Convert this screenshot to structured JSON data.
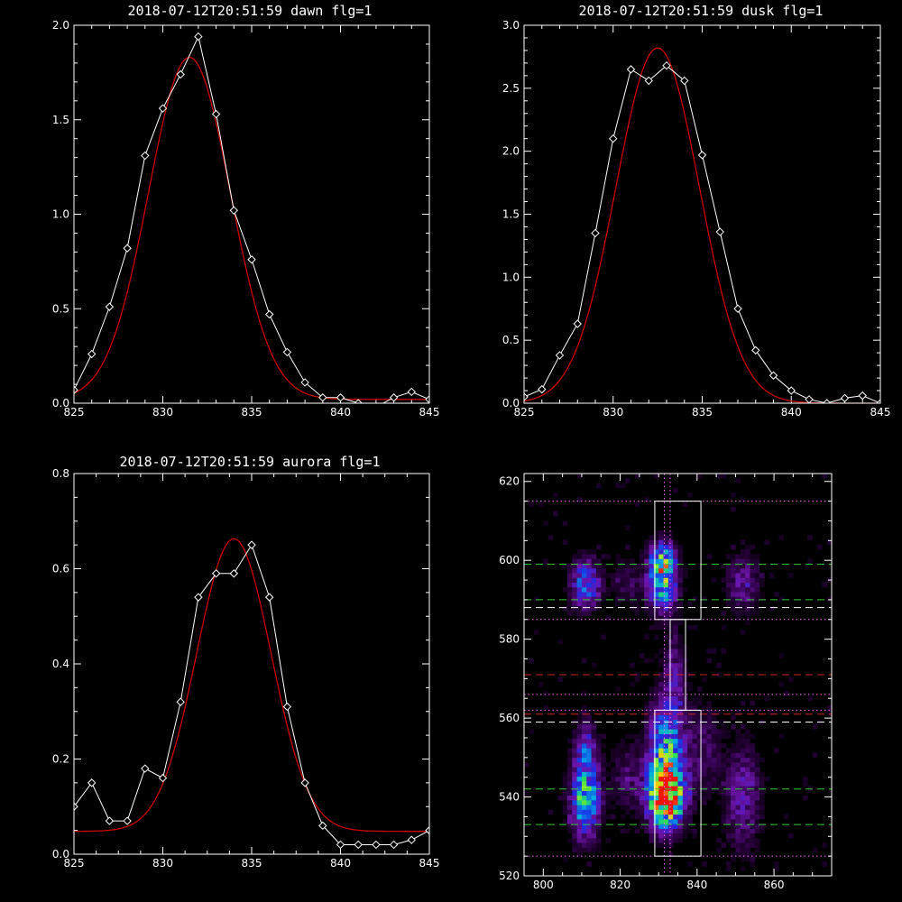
{
  "colors": {
    "background": "#000000",
    "axes": "#ffffff",
    "data_line": "#ffffff",
    "fit_line": "#cc0000",
    "box": "#ffffff",
    "center_line": "#ff66ff",
    "green_line": "#33cc33",
    "red_line": "#cc2222",
    "white_dash": "#ffffff"
  },
  "chart_data": [
    {
      "id": "dawn",
      "type": "line",
      "title": "2018-07-12T20:51:59 dawn flg=1",
      "xlim": [
        825,
        845
      ],
      "ylim": [
        0,
        2.0
      ],
      "xticks": [
        825,
        830,
        835,
        840,
        845
      ],
      "yticks": [
        0.0,
        0.5,
        1.0,
        1.5,
        2.0
      ],
      "xtick_labels": [
        "825",
        "830",
        "835",
        "840",
        "845"
      ],
      "ytick_labels": [
        "0.0",
        "0.5",
        "1.0",
        "1.5",
        "2.0"
      ],
      "series": [
        {
          "style": "data-diamonds",
          "x": [
            825,
            826,
            827,
            828,
            829,
            830,
            831,
            832,
            833,
            834,
            835,
            836,
            837,
            838,
            839,
            840,
            841,
            842,
            843,
            844,
            845
          ],
          "y": [
            0.07,
            0.26,
            0.51,
            0.82,
            1.31,
            1.56,
            1.74,
            1.94,
            1.53,
            1.02,
            0.76,
            0.47,
            0.27,
            0.11,
            0.03,
            0.03,
            0.0,
            -0.02,
            0.03,
            0.06,
            0.02
          ]
        },
        {
          "style": "fit",
          "gaussian": {
            "amplitude": 1.81,
            "center": 831.5,
            "sigma": 2.3,
            "offset": 0.02
          }
        }
      ]
    },
    {
      "id": "dusk",
      "type": "line",
      "title": "2018-07-12T20:51:59 dusk flg=1",
      "xlim": [
        825,
        845
      ],
      "ylim": [
        0,
        3.0
      ],
      "xticks": [
        825,
        830,
        835,
        840,
        845
      ],
      "yticks": [
        0.0,
        0.5,
        1.0,
        1.5,
        2.0,
        2.5,
        3.0
      ],
      "xtick_labels": [
        "825",
        "830",
        "835",
        "840",
        "845"
      ],
      "ytick_labels": [
        "0.0",
        "0.5",
        "1.0",
        "1.5",
        "2.0",
        "2.5",
        "3.0"
      ],
      "series": [
        {
          "style": "data-diamonds",
          "x": [
            825,
            826,
            827,
            828,
            829,
            830,
            831,
            832,
            833,
            834,
            835,
            836,
            837,
            838,
            839,
            840,
            841,
            842,
            843,
            844,
            845
          ],
          "y": [
            0.05,
            0.11,
            0.38,
            0.63,
            1.35,
            2.1,
            2.65,
            2.56,
            2.68,
            2.56,
            1.97,
            1.36,
            0.75,
            0.42,
            0.22,
            0.1,
            0.03,
            0.0,
            0.04,
            0.06,
            0.0
          ]
        },
        {
          "style": "fit",
          "gaussian": {
            "amplitude": 2.82,
            "center": 832.5,
            "sigma": 2.35,
            "offset": 0.0
          }
        }
      ]
    },
    {
      "id": "aurora",
      "type": "line",
      "title": "2018-07-12T20:51:59 aurora flg=1",
      "xlim": [
        825,
        845
      ],
      "ylim": [
        0,
        0.8
      ],
      "xticks": [
        825,
        830,
        835,
        840,
        845
      ],
      "yticks": [
        0.0,
        0.2,
        0.4,
        0.6,
        0.8
      ],
      "xtick_labels": [
        "825",
        "830",
        "835",
        "840",
        "845"
      ],
      "ytick_labels": [
        "0.0",
        "0.2",
        "0.4",
        "0.6",
        "0.8"
      ],
      "series": [
        {
          "style": "data-diamonds",
          "x": [
            825,
            826,
            827,
            828,
            829,
            830,
            831,
            832,
            833,
            834,
            835,
            836,
            837,
            838,
            839,
            840,
            841,
            842,
            843,
            844,
            845
          ],
          "y": [
            0.1,
            0.15,
            0.07,
            0.07,
            0.18,
            0.16,
            0.32,
            0.54,
            0.59,
            0.59,
            0.65,
            0.54,
            0.31,
            0.15,
            0.06,
            0.02,
            0.02,
            0.02,
            0.02,
            0.03,
            0.05
          ]
        },
        {
          "style": "fit",
          "gaussian": {
            "amplitude": 0.615,
            "center": 834.0,
            "sigma": 2.1,
            "offset": 0.048
          }
        }
      ]
    },
    {
      "id": "image",
      "type": "heatmap",
      "title": "",
      "xlim": [
        795,
        875
      ],
      "ylim": [
        520,
        622
      ],
      "xticks": [
        800,
        820,
        840,
        860
      ],
      "yticks": [
        520,
        540,
        560,
        580,
        600,
        620
      ],
      "xtick_labels": [
        "800",
        "820",
        "840",
        "860"
      ],
      "ytick_labels": [
        "520",
        "540",
        "560",
        "580",
        "600",
        "620"
      ],
      "blobs": [
        {
          "x": 832,
          "y": 540,
          "sx": 3.0,
          "sy": 5.0,
          "a": 1.0
        },
        {
          "x": 832,
          "y": 551,
          "sx": 3.0,
          "sy": 8.0,
          "a": 0.55
        },
        {
          "x": 831,
          "y": 595,
          "sx": 2.5,
          "sy": 5.0,
          "a": 0.55
        },
        {
          "x": 831,
          "y": 600,
          "sx": 2.0,
          "sy": 3.0,
          "a": 0.35
        },
        {
          "x": 811,
          "y": 539,
          "sx": 2.5,
          "sy": 6.0,
          "a": 0.55
        },
        {
          "x": 811,
          "y": 552,
          "sx": 2.0,
          "sy": 5.0,
          "a": 0.28
        },
        {
          "x": 811,
          "y": 594,
          "sx": 2.5,
          "sy": 4.0,
          "a": 0.4
        },
        {
          "x": 834,
          "y": 570,
          "sx": 2.0,
          "sy": 8.0,
          "a": 0.18
        },
        {
          "x": 852,
          "y": 540,
          "sx": 3.0,
          "sy": 9.0,
          "a": 0.2
        },
        {
          "x": 852,
          "y": 594,
          "sx": 3.0,
          "sy": 5.0,
          "a": 0.18
        },
        {
          "x": 822,
          "y": 545,
          "sx": 3.0,
          "sy": 6.0,
          "a": 0.12
        },
        {
          "x": 842,
          "y": 552,
          "sx": 3.0,
          "sy": 8.0,
          "a": 0.12
        },
        {
          "x": 822,
          "y": 594,
          "sx": 3.0,
          "sy": 4.0,
          "a": 0.1
        }
      ],
      "boxes": [
        {
          "x0": 829,
          "x1": 841,
          "y0": 525,
          "y1": 562
        },
        {
          "x0": 829,
          "x1": 841,
          "y0": 585,
          "y1": 615
        },
        {
          "x0": 833,
          "x1": 837,
          "y0": 562,
          "y1": 585
        }
      ],
      "vlines": [
        {
          "x": 831.5,
          "style": "dotted",
          "color": "#ff66ff"
        },
        {
          "x": 833.0,
          "style": "dotted",
          "color": "#ff66ff"
        }
      ],
      "hlines": [
        {
          "y": 615,
          "style": "dotted",
          "color": "#ff66ff"
        },
        {
          "y": 599,
          "style": "dashed",
          "color": "#33cc33"
        },
        {
          "y": 590,
          "style": "dashed",
          "color": "#33cc33"
        },
        {
          "y": 588,
          "style": "dashed",
          "color": "#ffffff"
        },
        {
          "y": 585,
          "style": "dotted",
          "color": "#ff66ff"
        },
        {
          "y": 571,
          "style": "dashed",
          "color": "#cc2222"
        },
        {
          "y": 566,
          "style": "dotted",
          "color": "#ff66ff"
        },
        {
          "y": 562,
          "style": "dotted",
          "color": "#ff66ff"
        },
        {
          "y": 561,
          "style": "dashed",
          "color": "#cc2222"
        },
        {
          "y": 559,
          "style": "dashed",
          "color": "#ffffff"
        },
        {
          "y": 542,
          "style": "dashed",
          "color": "#33cc33"
        },
        {
          "y": 533,
          "style": "dashed",
          "color": "#33cc33"
        },
        {
          "y": 525,
          "style": "dotted",
          "color": "#ff66ff"
        }
      ]
    }
  ]
}
